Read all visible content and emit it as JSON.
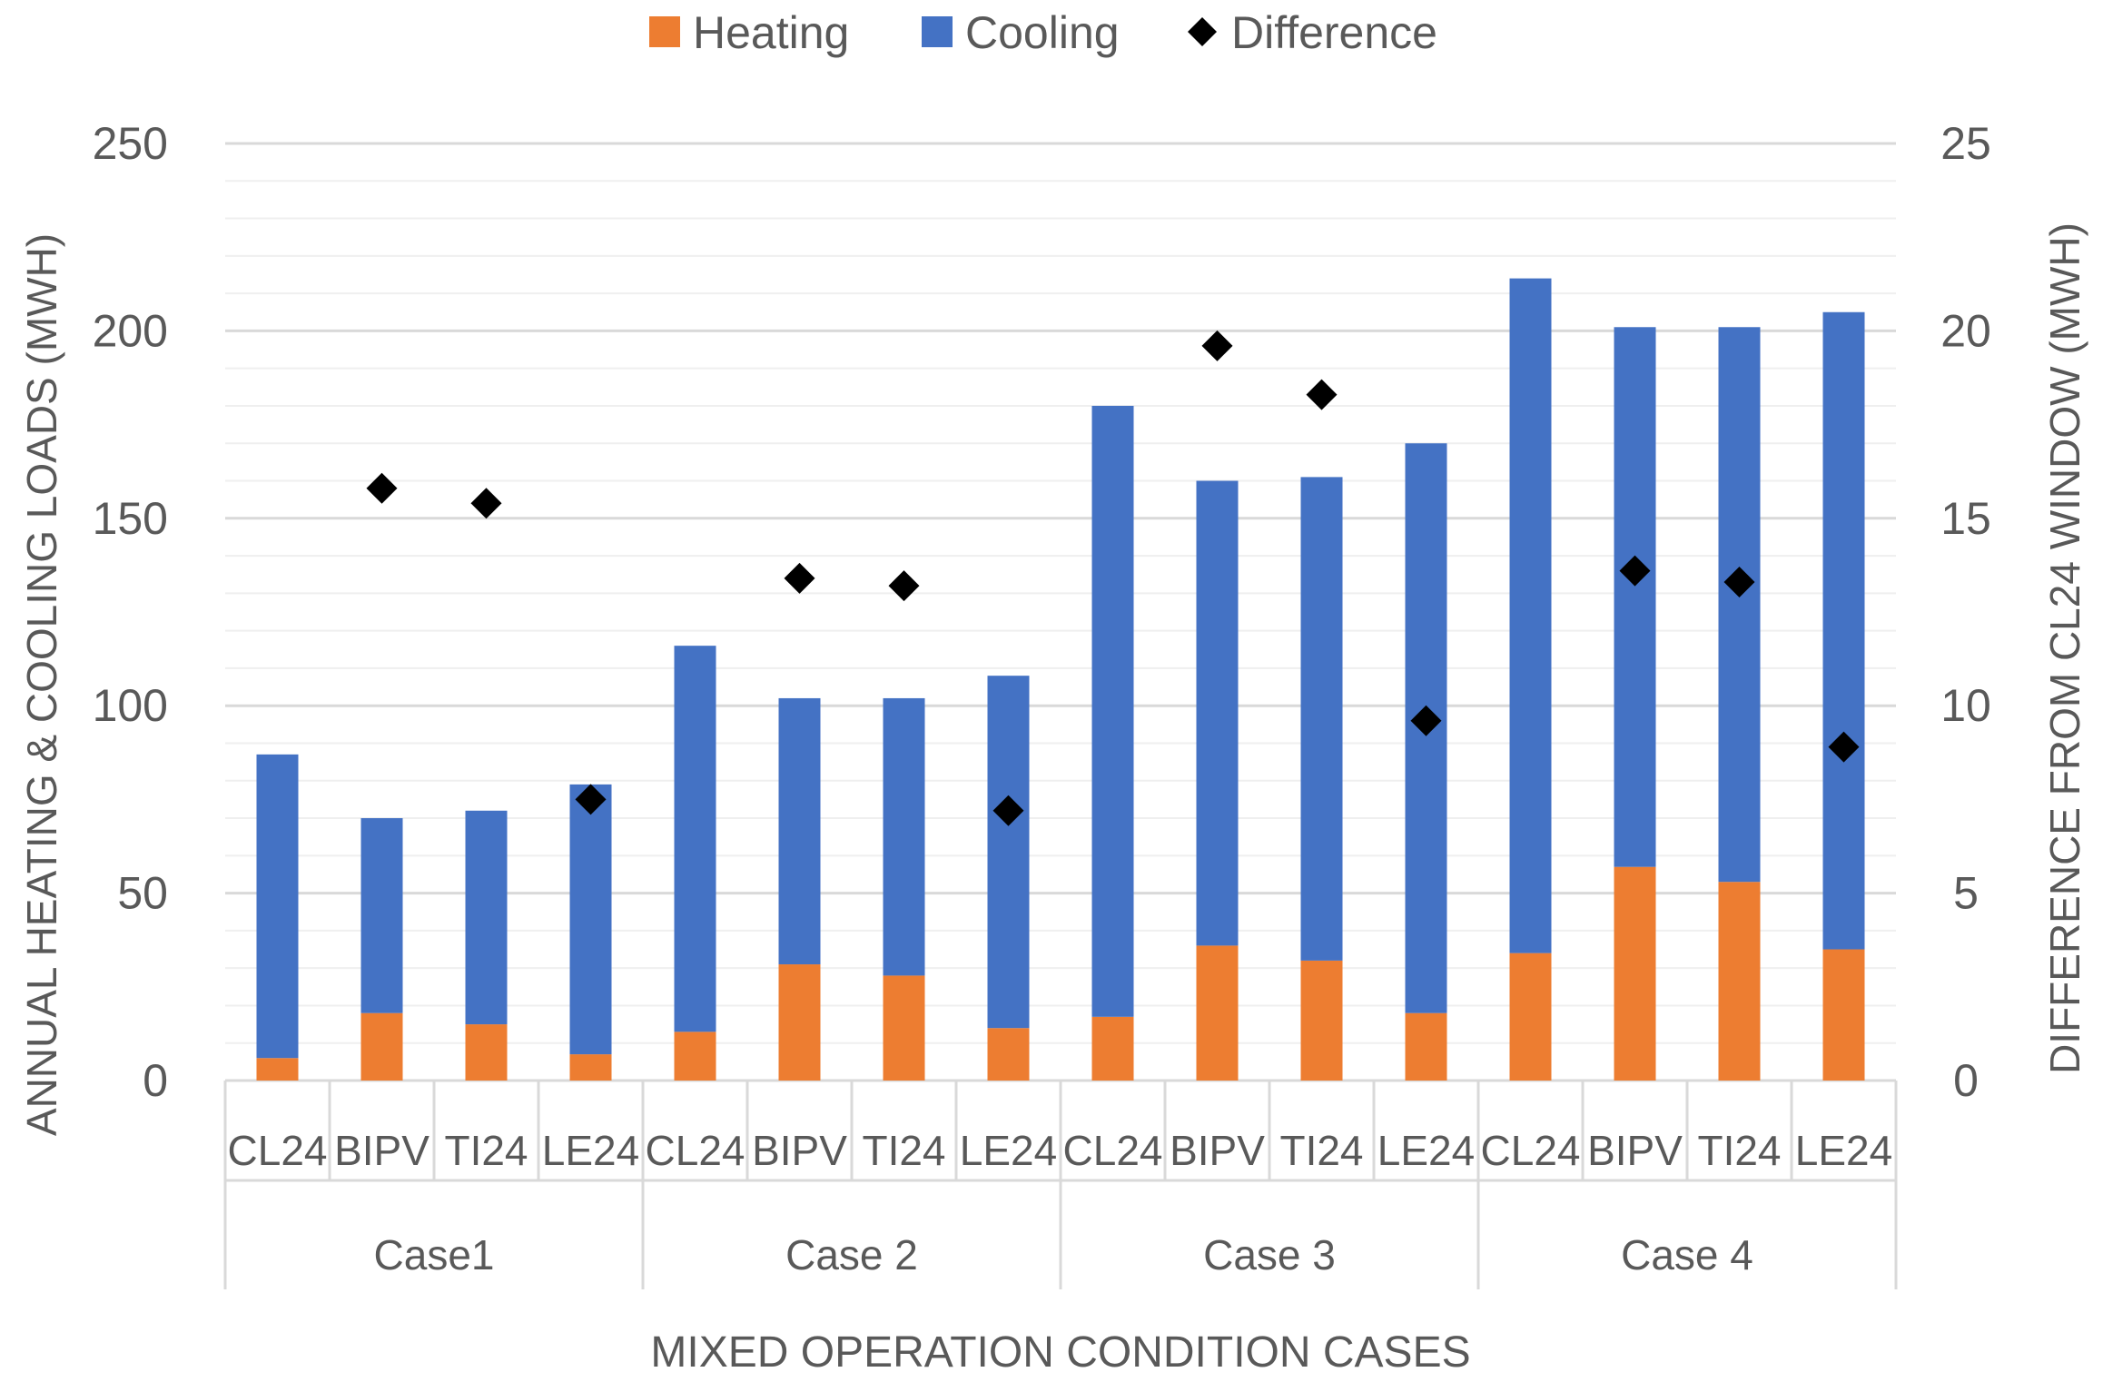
{
  "chart_data": {
    "type": "bar",
    "subtype": "stacked-bar-with-secondary-axis-markers",
    "title": "",
    "xlabel": "MIXED OPERATION CONDITION CASES",
    "ylabel": "ANNUAL HEATING & COOLING LOADS (MWH)",
    "y2label": "DIFFERENCE FROM CL24 WINDOW (MWH)",
    "ylim": [
      0,
      250
    ],
    "y_ticks": [
      0,
      50,
      100,
      150,
      200,
      250
    ],
    "y2lim": [
      0,
      25
    ],
    "y2_ticks": [
      0,
      5,
      10,
      15,
      20,
      25
    ],
    "grid": true,
    "legend_position": "top-center",
    "groups": [
      "Case1",
      "Case 2",
      "Case 3",
      "Case 4"
    ],
    "categories": [
      "CL24",
      "BIPV",
      "TI24",
      "LE24",
      "CL24",
      "BIPV",
      "TI24",
      "LE24",
      "CL24",
      "BIPV",
      "TI24",
      "LE24",
      "CL24",
      "BIPV",
      "TI24",
      "LE24"
    ],
    "series": [
      {
        "name": "Heating",
        "kind": "bar",
        "axis": "left",
        "color": "#ED7D31",
        "values": [
          6,
          18,
          15,
          7,
          13,
          31,
          28,
          14,
          17,
          36,
          32,
          18,
          34,
          57,
          53,
          35
        ]
      },
      {
        "name": "Cooling",
        "kind": "bar",
        "axis": "left",
        "color": "#4472C4",
        "values": [
          81,
          52,
          57,
          72,
          103,
          71,
          74,
          94,
          163,
          124,
          129,
          152,
          180,
          144,
          148,
          170
        ]
      },
      {
        "name": "Difference",
        "kind": "marker",
        "axis": "right",
        "color": "#000000",
        "values": [
          null,
          15.8,
          15.4,
          7.5,
          null,
          13.4,
          13.2,
          7.2,
          null,
          19.6,
          18.3,
          9.6,
          null,
          13.6,
          13.3,
          8.9
        ]
      }
    ]
  }
}
